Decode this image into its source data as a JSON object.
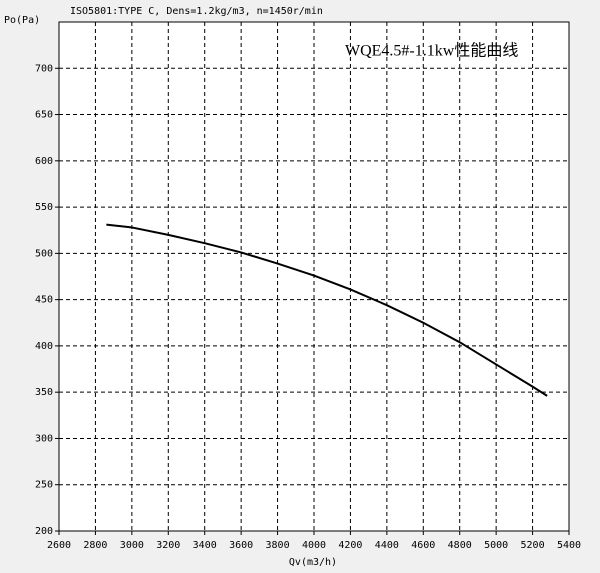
{
  "chart_data": {
    "type": "line",
    "title": "ISO5801:TYPE C, Dens=1.2kg/m3, n=1450r/min",
    "annotation": "WQE4.5#-1.1kw性能曲线",
    "x_label": "Qv(m3/h)",
    "y_label": "Po(Pa)",
    "x": [
      2860,
      3000,
      3200,
      3400,
      3600,
      3800,
      4000,
      4200,
      4400,
      4600,
      4800,
      5000,
      5200,
      5280
    ],
    "series": [
      {
        "color": "#000000",
        "values": [
          531,
          528,
          520,
          511,
          501,
          489,
          476,
          461,
          444,
          425,
          404,
          380,
          356,
          346
        ]
      }
    ],
    "xlim": [
      2600,
      5400
    ],
    "xticks": [
      2600,
      2800,
      3000,
      3200,
      3400,
      3600,
      3800,
      4000,
      4200,
      4400,
      4600,
      4800,
      5000,
      5200,
      5400
    ],
    "ylim": [
      200,
      750
    ],
    "yticks": [
      200,
      250,
      300,
      350,
      400,
      450,
      500,
      550,
      600,
      650,
      700
    ],
    "grid": true,
    "annotation_color": "#ff0000"
  }
}
